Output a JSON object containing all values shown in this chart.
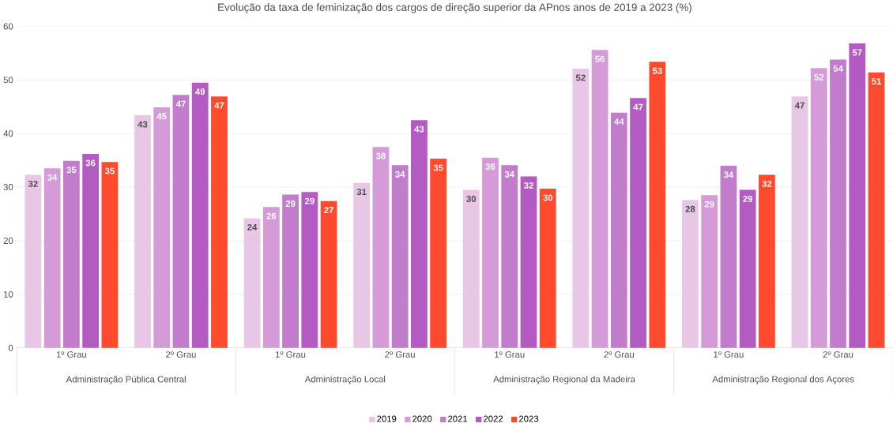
{
  "chart_data": {
    "type": "bar",
    "title": "Evolução da taxa de feminização dos cargos de direção superior da APnos anos de 2019 a 2023 (%)",
    "categories": [
      "1º Grau",
      "2º Grau",
      "1º Grau",
      "2º Grau",
      "1º Grau",
      "2º Grau",
      "1º Grau",
      "2º Grau"
    ],
    "annotations": [
      "Administração Pública Central",
      "Administração Local",
      "Administração Regional da Madeira",
      "Administração Regional dos Açores"
    ],
    "series": [
      {
        "name": "2019",
        "color": "#e8c6e6",
        "values": [
          32.3,
          43.4,
          24.2,
          30.8,
          29.5,
          52.1,
          27.6,
          46.9
        ],
        "value_labels": [
          "32",
          "43",
          "24",
          "31",
          "30",
          "52",
          "28",
          "47"
        ]
      },
      {
        "name": "2020",
        "color": "#d49bd8",
        "values": [
          33.5,
          44.9,
          26.3,
          37.5,
          35.5,
          55.6,
          28.5,
          52.2
        ],
        "value_labels": [
          "34",
          "45",
          "26",
          "38",
          "36",
          "56",
          "29",
          "52"
        ]
      },
      {
        "name": "2021",
        "color": "#c27ccc",
        "values": [
          34.9,
          47.2,
          28.6,
          34.1,
          34.1,
          43.9,
          34.0,
          53.8
        ],
        "value_labels": [
          "35",
          "47",
          "29",
          "34",
          "34",
          "44",
          "34",
          "54"
        ]
      },
      {
        "name": "2022",
        "color": "#b35bc2",
        "values": [
          36.2,
          49.5,
          29.1,
          42.5,
          32.0,
          46.6,
          29.5,
          56.8
        ],
        "value_labels": [
          "36",
          "49",
          "29",
          "43",
          "32",
          "47",
          "29",
          "57"
        ]
      },
      {
        "name": "2023",
        "color": "#ff4a2e",
        "values": [
          34.7,
          46.9,
          27.4,
          35.3,
          29.7,
          53.4,
          32.3,
          51.4
        ],
        "value_labels": [
          "35",
          "47",
          "27",
          "35",
          "30",
          "53",
          "32",
          "51"
        ]
      }
    ],
    "ylim": [
      0,
      60
    ],
    "yticks": [
      0,
      10,
      20,
      30,
      40,
      50,
      60
    ],
    "grid": "y",
    "legend": "bottom"
  }
}
